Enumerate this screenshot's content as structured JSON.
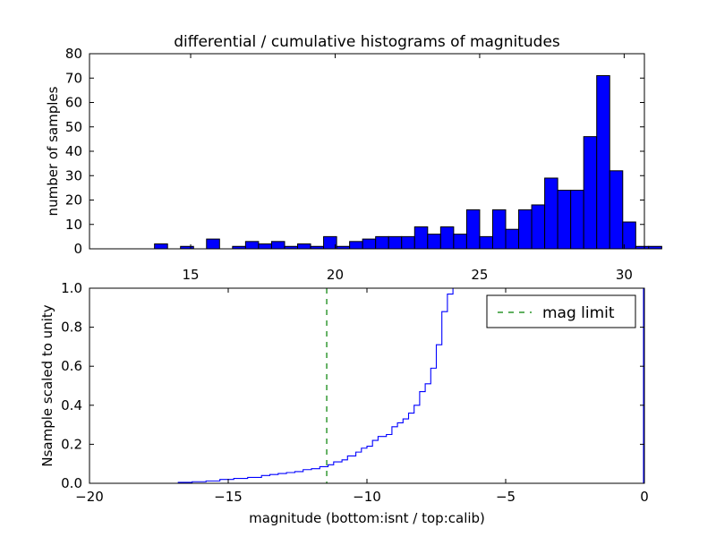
{
  "chart_data": [
    {
      "type": "bar",
      "title": "differential / cumulative histograms of magnitudes",
      "xlabel": "",
      "ylabel": "number of samples",
      "xlim": [
        11.5,
        30.7
      ],
      "ylim": [
        0,
        80
      ],
      "xticks": [
        15,
        20,
        25,
        30
      ],
      "yticks": [
        0,
        10,
        20,
        30,
        40,
        50,
        60,
        70,
        80
      ],
      "bin_edges_start": 11.5,
      "bin_width": 0.45,
      "values": [
        0,
        0,
        0,
        0,
        0,
        2,
        0,
        1,
        0,
        4,
        0,
        1,
        3,
        2,
        3,
        1,
        2,
        1,
        5,
        1,
        3,
        4,
        5,
        5,
        5,
        9,
        6,
        9,
        6,
        16,
        5,
        16,
        8,
        16,
        18,
        29,
        24,
        24,
        46,
        71,
        32,
        11,
        1,
        1
      ],
      "bar_color": "#0000ff",
      "grid": false
    },
    {
      "type": "line",
      "xlabel": "magnitude (bottom:isnt / top:calib)",
      "ylabel": "Nsample scaled to unity",
      "xlim": [
        -20,
        0
      ],
      "ylim": [
        0,
        1.0
      ],
      "xticks": [
        -20,
        -15,
        -10,
        -5,
        0
      ],
      "yticks": [
        0.0,
        0.2,
        0.4,
        0.6,
        0.8,
        1.0
      ],
      "series": [
        {
          "color": "#0000ff",
          "step": true,
          "x": [
            -20,
            -16.8,
            -16.3,
            -15.8,
            -15.3,
            -14.8,
            -14.3,
            -13.8,
            -13.5,
            -13.2,
            -12.9,
            -12.6,
            -12.3,
            -12.0,
            -11.7,
            -11.4,
            -11.2,
            -10.9,
            -10.7,
            -10.4,
            -10.2,
            -10.0,
            -9.8,
            -9.6,
            -9.3,
            -9.1,
            -8.9,
            -8.7,
            -8.5,
            -8.3,
            -8.1,
            -7.9,
            -7.7,
            -7.5,
            -7.3,
            -7.1,
            -6.9,
            -6.5,
            -0.1
          ],
          "y": [
            0.0,
            0.005,
            0.008,
            0.012,
            0.02,
            0.025,
            0.03,
            0.04,
            0.045,
            0.05,
            0.055,
            0.06,
            0.07,
            0.075,
            0.085,
            0.095,
            0.11,
            0.12,
            0.14,
            0.16,
            0.18,
            0.19,
            0.22,
            0.24,
            0.25,
            0.29,
            0.31,
            0.33,
            0.36,
            0.4,
            0.47,
            0.51,
            0.59,
            0.71,
            0.88,
            0.97,
            1.0,
            1.0,
            1.0
          ]
        },
        {
          "name": "mag limit",
          "color": "#008000",
          "dashed": true,
          "vline_x": -11.45
        }
      ],
      "legend": "top-right",
      "grid": false
    }
  ]
}
